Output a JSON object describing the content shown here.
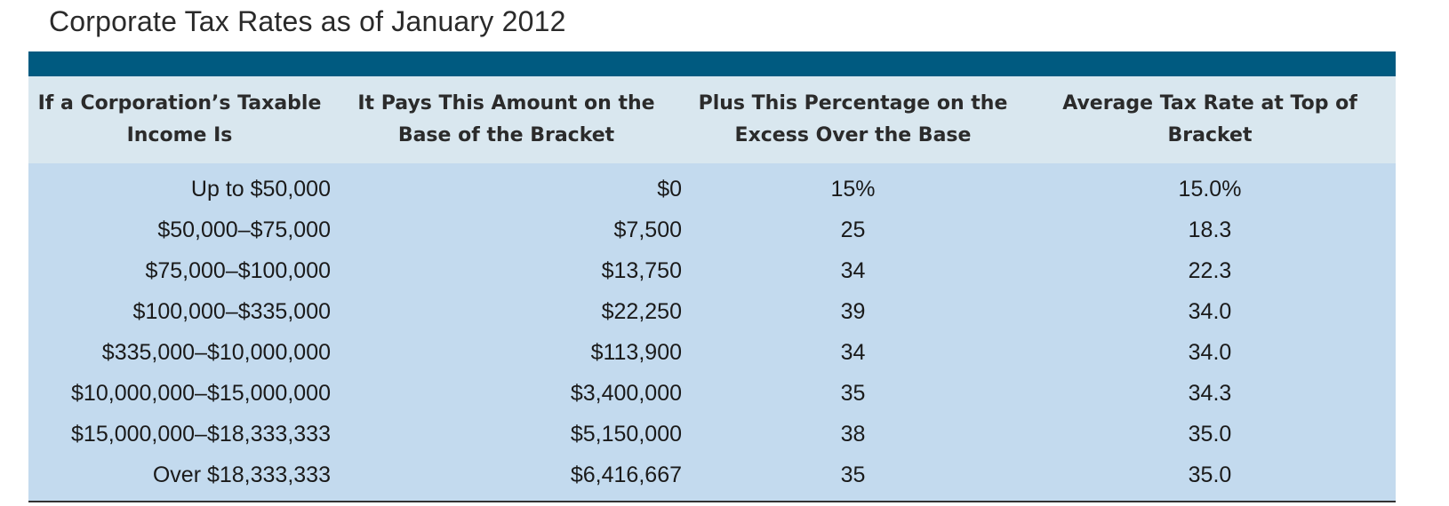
{
  "title": "Corporate Tax Rates as of January 2012",
  "table": {
    "headers": [
      "If a Corporation’s Taxable Income Is",
      "It Pays This Amount on the Base of the Bracket",
      "Plus This Percentage on the Excess Over the Base",
      "Average Tax Rate at Top of Bracket"
    ],
    "rows": [
      [
        "Up to $50,000",
        "$0",
        "15%",
        "15.0%"
      ],
      [
        "$50,000–$75,000",
        "$7,500",
        "25",
        "18.3"
      ],
      [
        "$75,000–$100,000",
        "$13,750",
        "34",
        "22.3"
      ],
      [
        "$100,000–$335,000",
        "$22,250",
        "39",
        "34.0"
      ],
      [
        "$335,000–$10,000,000",
        "$113,900",
        "34",
        "34.0"
      ],
      [
        "$10,000,000–$15,000,000",
        "$3,400,000",
        "35",
        "34.3"
      ],
      [
        "$15,000,000–$18,333,333",
        "$5,150,000",
        "38",
        "35.0"
      ],
      [
        "Over $18,333,333",
        "$6,416,667",
        "35",
        "35.0"
      ]
    ]
  },
  "colors": {
    "header_bar": "#005a80",
    "header_bg": "#d9e7ef",
    "body_bg": "#c3daee"
  }
}
